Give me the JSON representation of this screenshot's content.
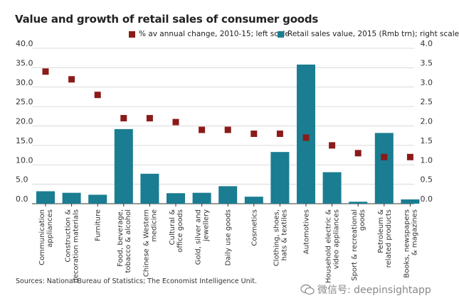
{
  "title": "Value and growth of retail sales of consumer goods",
  "legend": {
    "growth": "% av annual change, 2010-15; left scale",
    "value": "Retail sales value, 2015 (Rmb trn); right scale"
  },
  "colors": {
    "bar": "#1a7d92",
    "marker": "#8b1a1a",
    "grid": "#cfcfcf",
    "axis": "#333333"
  },
  "source": "Sources: National Bureau of Statistics; The Economist Intelligence Unit.",
  "watermark": "微信号: deepinsightapp",
  "chart_data": {
    "type": "bar",
    "title": "Value and growth of retail sales of consumer goods",
    "left_axis": {
      "ticks": [
        "0.0",
        "5.0",
        "10.0",
        "15.0",
        "20.0",
        "25.0",
        "30.0",
        "35.0",
        "40.0"
      ],
      "ylim": [
        0,
        40
      ]
    },
    "right_axis": {
      "ticks": [
        "0.0",
        "0.5",
        "1.0",
        "1.5",
        "2.0",
        "2.5",
        "3.0",
        "3.5",
        "4.0"
      ],
      "ylim": [
        0,
        4
      ]
    },
    "grid": true,
    "legend_position": "top",
    "categories": [
      [
        "Communication",
        "appliances"
      ],
      [
        "Construction &",
        "decoration materials"
      ],
      [
        "Furniture"
      ],
      [
        "Food, beverage,",
        "tobacco & alcohol"
      ],
      [
        "Chinese & Western",
        "medicine"
      ],
      [
        "Cultural &",
        "office goods"
      ],
      [
        "Gold, silver and",
        "jewellery"
      ],
      [
        "Daily use goods"
      ],
      [
        "Cosmetics"
      ],
      [
        "Clothing, shoes,",
        "hats & textiles"
      ],
      [
        "Automotives"
      ],
      [
        "Household electric &",
        "video appliances"
      ],
      [
        "Sport & recreational",
        "goods"
      ],
      [
        "Petroleum &",
        "related products"
      ],
      [
        "Books, newspapers",
        "& magazines"
      ]
    ],
    "series": [
      {
        "name": "% av annual change, 2010-15; left scale",
        "type": "scatter",
        "axis": "left",
        "values": [
          34.0,
          32.0,
          28.0,
          22.0,
          22.0,
          21.0,
          19.0,
          19.0,
          18.0,
          18.0,
          17.0,
          15.0,
          13.0,
          12.0,
          12.0
        ]
      },
      {
        "name": "Retail sales value, 2015 (Rmb trn); right scale",
        "type": "bar",
        "axis": "right",
        "values": [
          0.32,
          0.28,
          0.23,
          1.92,
          0.77,
          0.27,
          0.28,
          0.45,
          0.18,
          1.33,
          3.58,
          0.81,
          0.05,
          1.82,
          0.11
        ]
      }
    ]
  }
}
